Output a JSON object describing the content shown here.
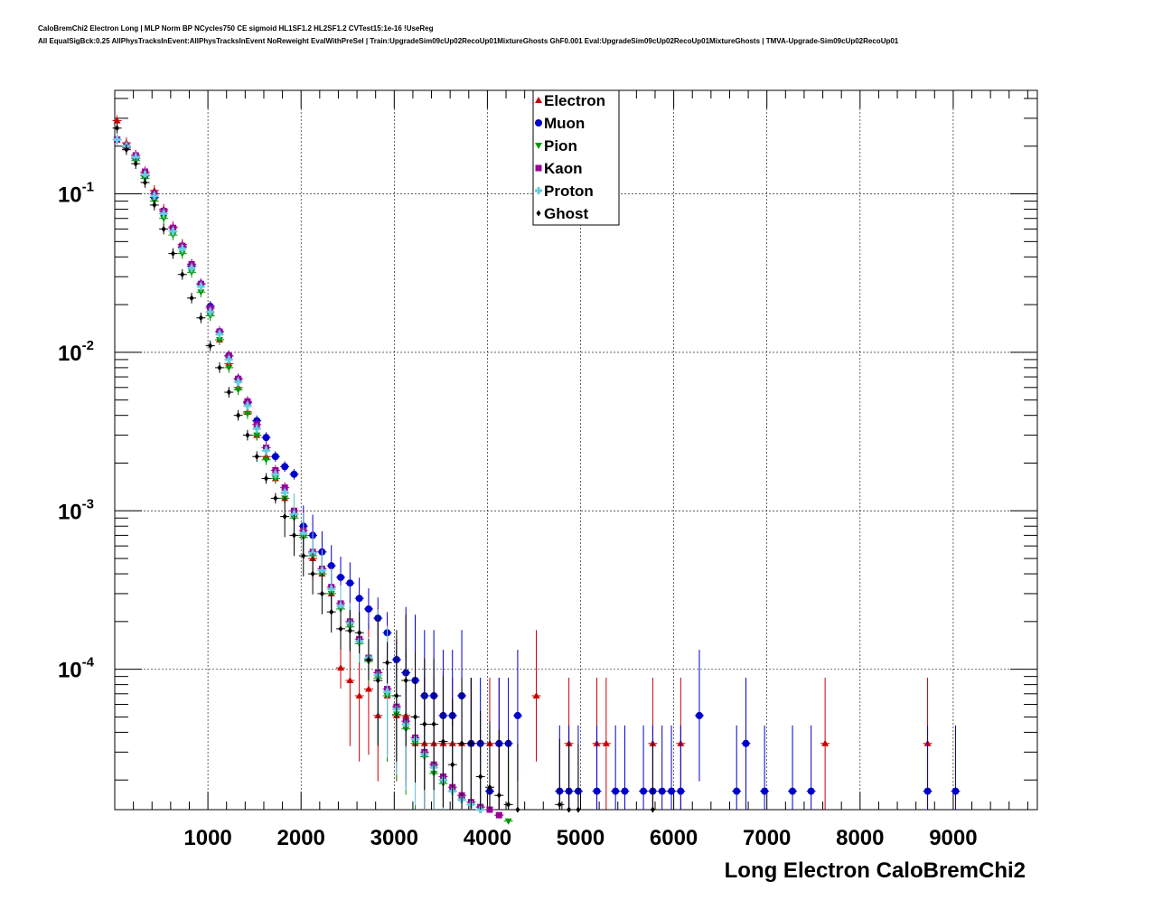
{
  "title_line1": "CaloBremChi2 Electron Long | MLP Norm BP NCycles750 CE sigmoid HL1SF1.2 HL2SF1.2 CVTest15:1e-16 !UseReg",
  "title_line2": "All EqualSigBck:0.25 AllPhysTracksInEvent:AllPhysTracksInEvent NoReweight EvalWithPreSel | Train:UpgradeSim09cUp02RecoUp01MixtureGhosts GhF0.001 Eval:UpgradeSim09cUp02RecoUp01MixtureGhosts | TMVA-Upgrade-Sim09cUp02RecoUp01",
  "chart_data": {
    "type": "scatter",
    "title": "CaloBremChi2 Electron Long | MLP Norm BP NCycles750 CE sigmoid HL1SF1.2 HL2SF1.2 CVTest15:1e-16 !UseReg",
    "xlabel": "Long Electron CaloBremChi2",
    "ylabel": "",
    "xlim": [
      0,
      9900
    ],
    "ylim": [
      1.3e-05,
      0.45
    ],
    "yscale": "log",
    "grid": true,
    "legend_position": "top-center",
    "x_ticks": [
      "1000",
      "2000",
      "3000",
      "4000",
      "5000",
      "6000",
      "7000",
      "8000",
      "9000"
    ],
    "y_ticks": [
      {
        "base": "10",
        "exp": "-1"
      },
      {
        "base": "10",
        "exp": "-2"
      },
      {
        "base": "10",
        "exp": "-3"
      },
      {
        "base": "10",
        "exp": "-4"
      }
    ],
    "series": [
      {
        "name": "Electron",
        "color": "#cc0000",
        "marker": "triangle-up",
        "points": [
          [
            25,
            0.29
          ],
          [
            125,
            0.21
          ],
          [
            225,
            0.175
          ],
          [
            325,
            0.135
          ],
          [
            425,
            0.105
          ],
          [
            525,
            0.08
          ],
          [
            625,
            0.062
          ],
          [
            725,
            0.048
          ],
          [
            825,
            0.036
          ],
          [
            925,
            0.027
          ],
          [
            1025,
            0.018
          ],
          [
            1125,
            0.012
          ],
          [
            1225,
            0.0085
          ],
          [
            1325,
            0.006
          ],
          [
            1425,
            0.0042
          ],
          [
            1525,
            0.003
          ],
          [
            1625,
            0.0022
          ],
          [
            1725,
            0.0016
          ],
          [
            1825,
            0.0012
          ],
          [
            1925,
            0.00095
          ],
          [
            2025,
            0.0007
          ],
          [
            2125,
            0.0005
          ],
          [
            2225,
            0.0004
          ],
          [
            2325,
            0.0003
          ],
          [
            2425,
            0.000102
          ],
          [
            2525,
            8.5e-05
          ],
          [
            2625,
            6.8e-05
          ],
          [
            2725,
            7.5e-05
          ],
          [
            2825,
            5.1e-05
          ],
          [
            2925,
            6.8e-05
          ],
          [
            3025,
            5.1e-05
          ],
          [
            3125,
            5.1e-05
          ],
          [
            3225,
            3.4e-05
          ],
          [
            3325,
            3.4e-05
          ],
          [
            3425,
            3.4e-05
          ],
          [
            3525,
            3.4e-05
          ],
          [
            3625,
            3.4e-05
          ],
          [
            3725,
            3.4e-05
          ],
          [
            3825,
            3.4e-05
          ],
          [
            4025,
            3.4e-05
          ],
          [
            4125,
            3.4e-05
          ],
          [
            4525,
            6.8e-05
          ],
          [
            4875,
            3.4e-05
          ],
          [
            5175,
            3.4e-05
          ],
          [
            5275,
            3.4e-05
          ],
          [
            5775,
            3.4e-05
          ],
          [
            6075,
            3.4e-05
          ],
          [
            7625,
            3.4e-05
          ],
          [
            8725,
            3.4e-05
          ]
        ]
      },
      {
        "name": "Muon",
        "color": "#0000cc",
        "marker": "circle",
        "points": [
          [
            25,
            0.22
          ],
          [
            125,
            0.2
          ],
          [
            225,
            0.168
          ],
          [
            325,
            0.13
          ],
          [
            425,
            0.095
          ],
          [
            525,
            0.075
          ],
          [
            625,
            0.058
          ],
          [
            725,
            0.046
          ],
          [
            825,
            0.035
          ],
          [
            925,
            0.027
          ],
          [
            1025,
            0.0195
          ],
          [
            1125,
            0.0135
          ],
          [
            1225,
            0.0095
          ],
          [
            1325,
            0.0068
          ],
          [
            1425,
            0.0048
          ],
          [
            1525,
            0.0037
          ],
          [
            1625,
            0.0029
          ],
          [
            1725,
            0.0022
          ],
          [
            1825,
            0.0019
          ],
          [
            1925,
            0.0017
          ],
          [
            2025,
            0.0008
          ],
          [
            2125,
            0.0007
          ],
          [
            2225,
            0.00055
          ],
          [
            2325,
            0.00045
          ],
          [
            2425,
            0.00038
          ],
          [
            2525,
            0.00035
          ],
          [
            2625,
            0.00028
          ],
          [
            2725,
            0.00024
          ],
          [
            2825,
            0.00021
          ],
          [
            2925,
            0.00017
          ],
          [
            3025,
            0.000115
          ],
          [
            3125,
            9.5e-05
          ],
          [
            3225,
            8.5e-05
          ],
          [
            3325,
            6.8e-05
          ],
          [
            3425,
            6.8e-05
          ],
          [
            3525,
            5.1e-05
          ],
          [
            3625,
            5.1e-05
          ],
          [
            3725,
            6.8e-05
          ],
          [
            3825,
            3.4e-05
          ],
          [
            3925,
            3.4e-05
          ],
          [
            4025,
            1.7e-05
          ],
          [
            4125,
            3.4e-05
          ],
          [
            4225,
            3.4e-05
          ],
          [
            4325,
            5.1e-05
          ],
          [
            4775,
            1.7e-05
          ],
          [
            4875,
            1.7e-05
          ],
          [
            4975,
            1.7e-05
          ],
          [
            5175,
            1.7e-05
          ],
          [
            5375,
            1.7e-05
          ],
          [
            5475,
            1.7e-05
          ],
          [
            5675,
            1.7e-05
          ],
          [
            5775,
            1.7e-05
          ],
          [
            5875,
            1.7e-05
          ],
          [
            5975,
            1.7e-05
          ],
          [
            6075,
            1.7e-05
          ],
          [
            6275,
            5.1e-05
          ],
          [
            6675,
            1.7e-05
          ],
          [
            6775,
            3.4e-05
          ],
          [
            6975,
            1.7e-05
          ],
          [
            7275,
            1.7e-05
          ],
          [
            7475,
            1.7e-05
          ],
          [
            8725,
            1.7e-05
          ],
          [
            9025,
            1.7e-05
          ]
        ]
      },
      {
        "name": "Pion",
        "color": "#009900",
        "marker": "triangle-down",
        "points": [
          [
            25,
            0.22
          ],
          [
            125,
            0.195
          ],
          [
            225,
            0.162
          ],
          [
            325,
            0.125
          ],
          [
            425,
            0.09
          ],
          [
            525,
            0.07
          ],
          [
            625,
            0.055
          ],
          [
            725,
            0.042
          ],
          [
            825,
            0.032
          ],
          [
            925,
            0.024
          ],
          [
            1025,
            0.017
          ],
          [
            1125,
            0.012
          ],
          [
            1225,
            0.008
          ],
          [
            1325,
            0.0058
          ],
          [
            1425,
            0.0041
          ],
          [
            1525,
            0.003
          ],
          [
            1625,
            0.0021
          ],
          [
            1725,
            0.0016
          ],
          [
            1825,
            0.0012
          ],
          [
            1925,
            0.0009
          ],
          [
            2025,
            0.00068
          ],
          [
            2125,
            0.00052
          ],
          [
            2225,
            0.0004
          ],
          [
            2325,
            0.0003
          ],
          [
            2425,
            0.00024
          ],
          [
            2525,
            0.000185
          ],
          [
            2625,
            0.000145
          ],
          [
            2725,
            0.000112
          ],
          [
            2825,
            8.8e-05
          ],
          [
            2925,
            6.8e-05
          ],
          [
            3025,
            5.2e-05
          ],
          [
            3125,
            4.2e-05
          ],
          [
            3225,
            3.4e-05
          ],
          [
            3325,
            2.8e-05
          ],
          [
            3425,
            2.2e-05
          ],
          [
            3525,
            1.9e-05
          ],
          [
            3625,
            1.7e-05
          ],
          [
            3725,
            1.5e-05
          ],
          [
            3825,
            1.4e-05
          ],
          [
            3925,
            1.35e-05
          ],
          [
            4025,
            1.3e-05
          ],
          [
            4125,
            1.2e-05
          ],
          [
            4225,
            1.1e-05
          ]
        ]
      },
      {
        "name": "Kaon",
        "color": "#990099",
        "marker": "square",
        "points": [
          [
            25,
            0.22
          ],
          [
            125,
            0.2
          ],
          [
            225,
            0.175
          ],
          [
            325,
            0.138
          ],
          [
            425,
            0.1
          ],
          [
            525,
            0.078
          ],
          [
            625,
            0.061
          ],
          [
            725,
            0.047
          ],
          [
            825,
            0.036
          ],
          [
            925,
            0.027
          ],
          [
            1025,
            0.019
          ],
          [
            1125,
            0.0135
          ],
          [
            1225,
            0.0095
          ],
          [
            1325,
            0.0068
          ],
          [
            1425,
            0.0049
          ],
          [
            1525,
            0.0035
          ],
          [
            1625,
            0.0025
          ],
          [
            1725,
            0.0018
          ],
          [
            1825,
            0.0014
          ],
          [
            1925,
            0.001
          ],
          [
            2025,
            0.00075
          ],
          [
            2125,
            0.00055
          ],
          [
            2225,
            0.00043
          ],
          [
            2325,
            0.00033
          ],
          [
            2425,
            0.00026
          ],
          [
            2525,
            0.0002
          ],
          [
            2625,
            0.000155
          ],
          [
            2725,
            0.000118
          ],
          [
            2825,
            9.5e-05
          ],
          [
            2925,
            7.5e-05
          ],
          [
            3025,
            5.8e-05
          ],
          [
            3125,
            4.7e-05
          ],
          [
            3225,
            3.7e-05
          ],
          [
            3325,
            3e-05
          ],
          [
            3425,
            2.5e-05
          ],
          [
            3525,
            2.1e-05
          ],
          [
            3625,
            1.8e-05
          ],
          [
            3725,
            1.6e-05
          ],
          [
            3825,
            1.45e-05
          ],
          [
            3925,
            1.35e-05
          ],
          [
            4025,
            1.3e-05
          ],
          [
            4125,
            1.2e-05
          ]
        ]
      },
      {
        "name": "Proton",
        "color": "#66ccdd",
        "marker": "cross",
        "points": [
          [
            25,
            0.22
          ],
          [
            125,
            0.2
          ],
          [
            225,
            0.17
          ],
          [
            325,
            0.132
          ],
          [
            425,
            0.097
          ],
          [
            525,
            0.075
          ],
          [
            625,
            0.058
          ],
          [
            725,
            0.045
          ],
          [
            825,
            0.034
          ],
          [
            925,
            0.026
          ],
          [
            1025,
            0.018
          ],
          [
            1125,
            0.013
          ],
          [
            1225,
            0.009
          ],
          [
            1325,
            0.0065
          ],
          [
            1425,
            0.0046
          ],
          [
            1525,
            0.0033
          ],
          [
            1625,
            0.0024
          ],
          [
            1725,
            0.0017
          ],
          [
            1825,
            0.0013
          ],
          [
            1925,
            0.00095
          ],
          [
            2025,
            0.00072
          ],
          [
            2125,
            0.00054
          ],
          [
            2225,
            0.00042
          ],
          [
            2325,
            0.00032
          ],
          [
            2425,
            0.00025
          ],
          [
            2525,
            0.000195
          ],
          [
            2625,
            0.00015
          ],
          [
            2725,
            0.000118
          ],
          [
            2825,
            9.2e-05
          ],
          [
            2925,
            7.2e-05
          ],
          [
            3025,
            5.6e-05
          ],
          [
            3125,
            4.5e-05
          ],
          [
            3225,
            3.6e-05
          ],
          [
            3325,
            2.9e-05
          ],
          [
            3425,
            2.4e-05
          ],
          [
            3525,
            2e-05
          ],
          [
            3625,
            1.7e-05
          ],
          [
            3725,
            1.5e-05
          ],
          [
            3825,
            1.4e-05
          ],
          [
            3925,
            1.3e-05
          ]
        ]
      },
      {
        "name": "Ghost",
        "color": "#000000",
        "marker": "diamond",
        "points": [
          [
            25,
            0.26
          ],
          [
            125,
            0.19
          ],
          [
            225,
            0.155
          ],
          [
            325,
            0.118
          ],
          [
            425,
            0.085
          ],
          [
            525,
            0.06
          ],
          [
            625,
            0.042
          ],
          [
            725,
            0.031
          ],
          [
            825,
            0.022
          ],
          [
            925,
            0.0165
          ],
          [
            1025,
            0.011
          ],
          [
            1125,
            0.008
          ],
          [
            1225,
            0.0056
          ],
          [
            1325,
            0.004
          ],
          [
            1425,
            0.003
          ],
          [
            1525,
            0.0022
          ],
          [
            1625,
            0.0016
          ],
          [
            1725,
            0.0012
          ],
          [
            1825,
            0.00092
          ],
          [
            1925,
            0.0007
          ],
          [
            2025,
            0.00052
          ],
          [
            2125,
            0.0004
          ],
          [
            2225,
            0.0003
          ],
          [
            2325,
            0.00023
          ],
          [
            2425,
            0.00018
          ],
          [
            2525,
            0.000175
          ],
          [
            2625,
            0.00017
          ],
          [
            2725,
            0.000115
          ],
          [
            2825,
            8.5e-05
          ],
          [
            2925,
            0.00011
          ],
          [
            3025,
            6.8e-05
          ],
          [
            3125,
            8.5e-05
          ],
          [
            3225,
            5e-05
          ],
          [
            3325,
            4.5e-05
          ],
          [
            3425,
            4.5e-05
          ],
          [
            3525,
            3.5e-05
          ],
          [
            3625,
            2.5e-05
          ],
          [
            3725,
            3.4e-05
          ],
          [
            3825,
            3.4e-05
          ],
          [
            3925,
            2.1e-05
          ],
          [
            4025,
            1.8e-05
          ],
          [
            4125,
            1.6e-05
          ],
          [
            4225,
            1.4e-05
          ],
          [
            4325,
            1.3e-05
          ],
          [
            4775,
            1.4e-05
          ],
          [
            4875,
            1.3e-05
          ],
          [
            4975,
            1.3e-05
          ],
          [
            5775,
            1.3e-05
          ]
        ]
      }
    ]
  }
}
